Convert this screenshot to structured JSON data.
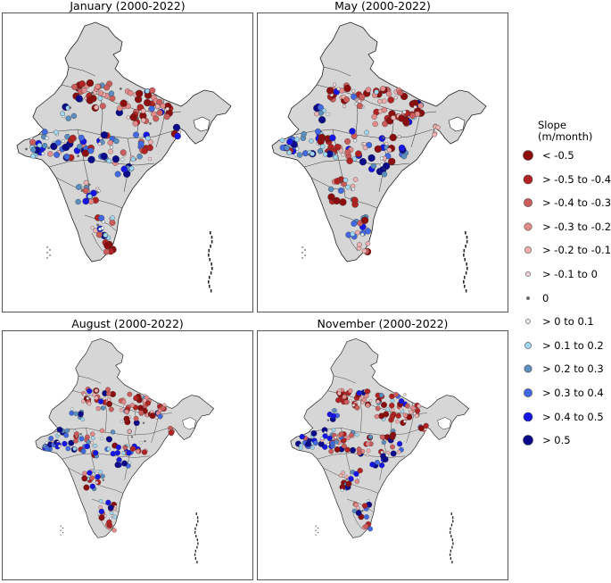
{
  "panels": [
    {
      "title": "January (2000-2022)",
      "seed": 11
    },
    {
      "title": "May (2000-2022)",
      "seed": 23
    },
    {
      "title": "August (2000-2022)",
      "seed": 37
    },
    {
      "title": "November (2000-2022)",
      "seed": 53
    }
  ],
  "legend": {
    "title_line1": "Slope",
    "title_line2": "(m/month)",
    "items": [
      {
        "label": "< -0.5",
        "color": "#8b0d0d",
        "size": 5.5
      },
      {
        "label": "> -0.5 to -0.4",
        "color": "#b22222",
        "size": 5.0
      },
      {
        "label": "> -0.4 to -0.3",
        "color": "#cd5c5c",
        "size": 4.6
      },
      {
        "label": "> -0.3 to -0.2",
        "color": "#e58a8a",
        "size": 4.2
      },
      {
        "label": "> -0.2 to -0.1",
        "color": "#eeb0b0",
        "size": 3.6
      },
      {
        "label": "> -0.1 to 0",
        "color": "#f6dada",
        "size": 2.6
      },
      {
        "label": "0",
        "color": "#707070",
        "size": 1.6
      },
      {
        "label": "> 0 to 0.1",
        "color": "#e3f2fb",
        "size": 2.6
      },
      {
        "label": "> 0.1 to 0.2",
        "color": "#9fd6f0",
        "size": 3.6
      },
      {
        "label": "> 0.2 to 0.3",
        "color": "#5a8fc0",
        "size": 4.2
      },
      {
        "label": "> 0.3 to 0.4",
        "color": "#4169e1",
        "size": 4.6
      },
      {
        "label": "> 0.4 to 0.5",
        "color": "#1515e8",
        "size": 5.0
      },
      {
        "label": "> 0.5",
        "color": "#0a0a8a",
        "size": 5.5
      }
    ]
  }
}
